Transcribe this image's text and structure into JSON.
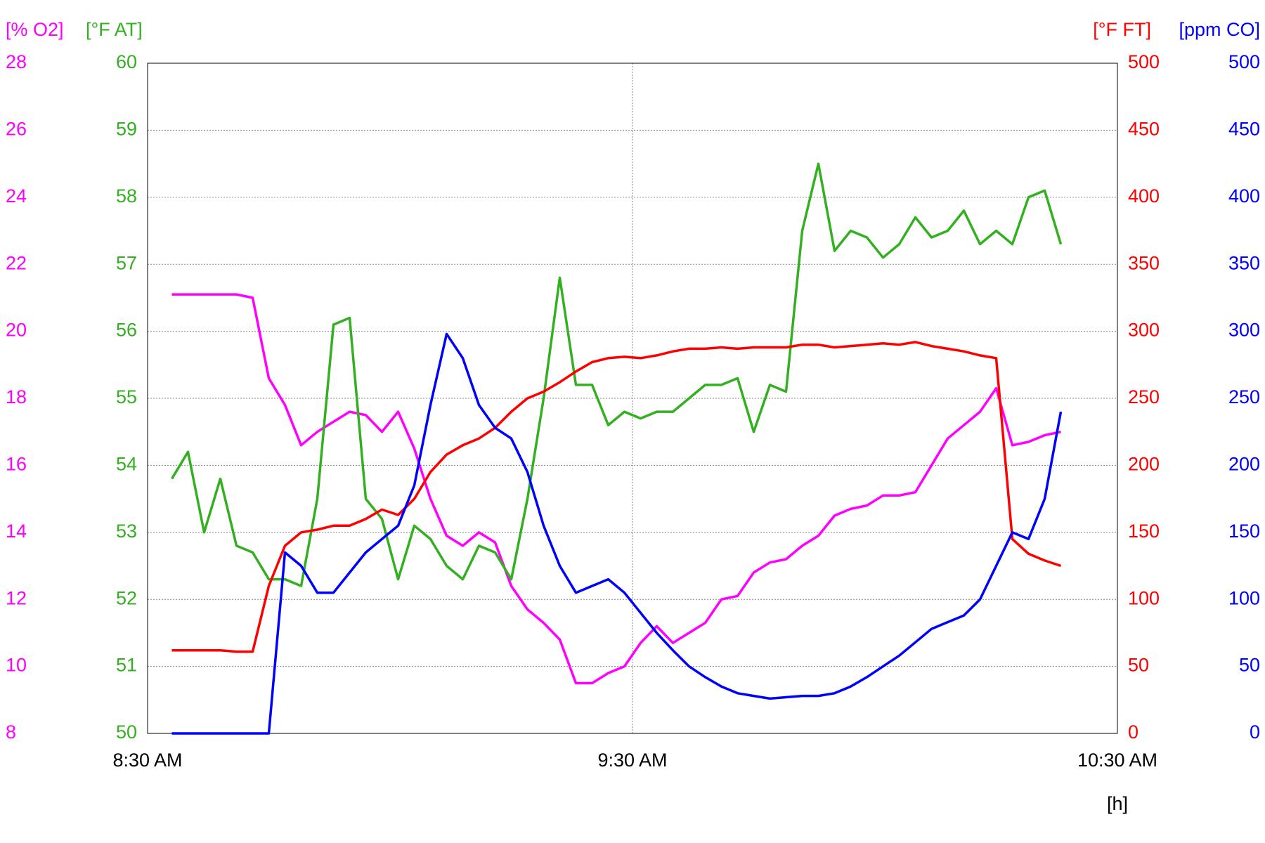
{
  "chart_data": {
    "type": "line",
    "x_label": "[h]",
    "xlim": [
      "8:30 AM",
      "10:30 AM"
    ],
    "xticks": [
      "8:30 AM",
      "9:30 AM",
      "10:30 AM"
    ],
    "x": [
      "8:33 AM",
      "8:35 AM",
      "8:37 AM",
      "8:39 AM",
      "8:41 AM",
      "8:43 AM",
      "8:45 AM",
      "8:47 AM",
      "8:49 AM",
      "8:51 AM",
      "8:53 AM",
      "8:55 AM",
      "8:57 AM",
      "8:59 AM",
      "9:01 AM",
      "9:03 AM",
      "9:05 AM",
      "9:07 AM",
      "9:09 AM",
      "9:11 AM",
      "9:13 AM",
      "9:15 AM",
      "9:17 AM",
      "9:19 AM",
      "9:21 AM",
      "9:23 AM",
      "9:25 AM",
      "9:27 AM",
      "9:29 AM",
      "9:31 AM",
      "9:33 AM",
      "9:35 AM",
      "9:37 AM",
      "9:39 AM",
      "9:41 AM",
      "9:43 AM",
      "9:45 AM",
      "9:47 AM",
      "9:49 AM",
      "9:51 AM",
      "9:53 AM",
      "9:55 AM",
      "9:57 AM",
      "9:59 AM",
      "10:01 AM",
      "10:03 AM",
      "10:05 AM",
      "10:07 AM",
      "10:09 AM",
      "10:11 AM",
      "10:13 AM",
      "10:15 AM",
      "10:17 AM",
      "10:19 AM",
      "10:21 AM",
      "10:23 AM"
    ],
    "axes": [
      {
        "label": "[% O2]",
        "color": "#ff00ff",
        "side": "left",
        "lim": [
          8,
          28
        ],
        "ticks": [
          8,
          10,
          12,
          14,
          16,
          18,
          20,
          22,
          24,
          26,
          28
        ]
      },
      {
        "label": "[°F AT]",
        "color": "#33b020",
        "side": "left",
        "lim": [
          50,
          60
        ],
        "ticks": [
          50,
          51,
          52,
          53,
          54,
          55,
          56,
          57,
          58,
          59,
          60
        ],
        "grid": true
      },
      {
        "label": "[°F FT]",
        "color": "#ff0000",
        "side": "right",
        "lim": [
          0,
          500
        ],
        "ticks": [
          0,
          50,
          100,
          150,
          200,
          250,
          300,
          350,
          400,
          450,
          500
        ]
      },
      {
        "label": "[ppm CO]",
        "color": "#0000ff",
        "side": "right",
        "lim": [
          0,
          500
        ],
        "ticks": [
          0,
          50,
          100,
          150,
          200,
          250,
          300,
          350,
          400,
          450,
          500
        ]
      }
    ],
    "series": [
      {
        "name": "O2",
        "axis": 0,
        "color": "#ff00ff",
        "values": [
          21.1,
          21.1,
          21.1,
          21.1,
          21.1,
          21.0,
          18.6,
          17.8,
          16.6,
          17.0,
          17.3,
          17.6,
          17.5,
          17.0,
          17.6,
          16.5,
          15.0,
          13.9,
          13.6,
          14.0,
          13.7,
          12.4,
          11.7,
          11.3,
          10.8,
          9.5,
          9.5,
          9.8,
          10.0,
          10.7,
          11.2,
          10.7,
          11.0,
          11.3,
          12.0,
          12.1,
          12.8,
          13.1,
          13.2,
          13.6,
          13.9,
          14.5,
          14.7,
          14.8,
          15.1,
          15.1,
          15.2,
          16.0,
          16.8,
          17.2,
          17.6,
          18.3,
          16.6,
          16.7,
          16.9,
          17.0
        ]
      },
      {
        "name": "AT",
        "axis": 1,
        "color": "#33b020",
        "values": [
          53.8,
          54.2,
          53.0,
          53.8,
          52.8,
          52.7,
          52.3,
          52.3,
          52.2,
          53.5,
          56.1,
          56.2,
          53.5,
          53.2,
          52.3,
          53.1,
          52.9,
          52.5,
          52.3,
          52.8,
          52.7,
          52.3,
          53.5,
          55.0,
          56.8,
          55.2,
          55.2,
          54.6,
          54.8,
          54.7,
          54.8,
          54.8,
          55.0,
          55.2,
          55.2,
          55.3,
          54.5,
          55.2,
          55.1,
          57.5,
          58.5,
          57.2,
          57.5,
          57.4,
          57.1,
          57.3,
          57.7,
          57.4,
          57.5,
          57.8,
          57.3,
          57.5,
          57.3,
          58.0,
          58.1,
          57.3
        ]
      },
      {
        "name": "FT",
        "axis": 2,
        "color": "#ff0000",
        "values": [
          62,
          62,
          62,
          62,
          61,
          61,
          110,
          140,
          150,
          152,
          155,
          155,
          160,
          167,
          163,
          175,
          195,
          208,
          215,
          220,
          228,
          240,
          250,
          255,
          262,
          270,
          277,
          280,
          281,
          280,
          282,
          285,
          287,
          287,
          288,
          287,
          288,
          288,
          288,
          290,
          290,
          288,
          289,
          290,
          291,
          290,
          292,
          289,
          287,
          285,
          282,
          280,
          145,
          134,
          129,
          125
        ]
      },
      {
        "name": "CO",
        "axis": 3,
        "color": "#0000ff",
        "values": [
          0,
          0,
          0,
          0,
          0,
          0,
          0,
          135,
          125,
          105,
          105,
          120,
          135,
          145,
          155,
          185,
          245,
          298,
          280,
          245,
          228,
          220,
          195,
          155,
          125,
          105,
          110,
          115,
          105,
          90,
          75,
          62,
          50,
          42,
          35,
          30,
          28,
          26,
          27,
          28,
          28,
          30,
          35,
          42,
          50,
          58,
          68,
          78,
          83,
          88,
          100,
          125,
          150,
          145,
          175,
          240
        ]
      }
    ]
  }
}
